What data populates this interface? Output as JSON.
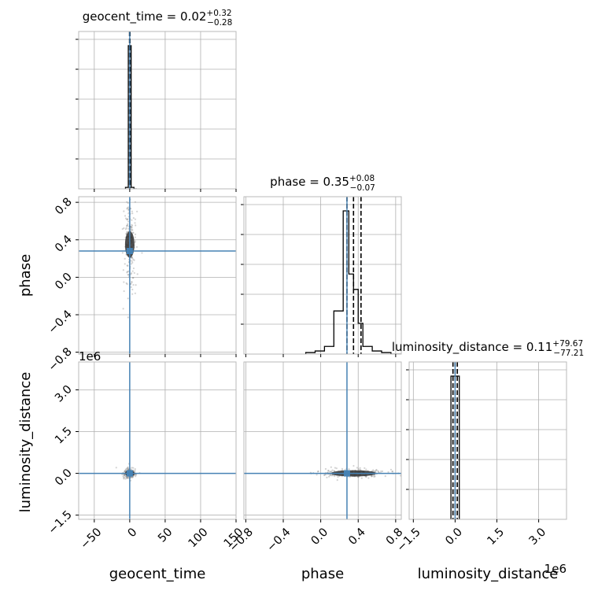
{
  "chart_data": {
    "type": "corner",
    "parameters": [
      "geocent_time",
      "phase",
      "luminosity_distance"
    ],
    "colors": {
      "truth": "#4682b4",
      "hist": "#000000",
      "grid": "#b0b0b0",
      "samples": "#808080"
    },
    "offset_labels": {
      "luminosity_distance_y": "1e6",
      "luminosity_distance_x": "1e6"
    },
    "ranges": {
      "geocent_time": [
        -72,
        150
      ],
      "phase": [
        -0.82,
        0.86
      ],
      "luminosity_distance": [
        -1650000,
        4000000
      ]
    },
    "ticks": {
      "geocent_time": {
        "values": [
          -50,
          0,
          50,
          100,
          150
        ],
        "labels": [
          "−50",
          "0",
          "50",
          "100",
          "150"
        ]
      },
      "phase": {
        "values": [
          -0.8,
          -0.4,
          0.0,
          0.4,
          0.8
        ],
        "labels": [
          "−0.8",
          "−0.4",
          "0.0",
          "0.4",
          "0.8"
        ]
      },
      "luminosity_distance": {
        "values": [
          -1500000,
          0,
          1500000,
          3000000
        ],
        "labels": [
          "−1.5",
          "0.0",
          "1.5",
          "3.0"
        ]
      }
    },
    "truths": {
      "geocent_time": 0,
      "phase": 0.28,
      "luminosity_distance": 0
    },
    "diagonal": [
      {
        "param": "geocent_time",
        "title": "geocent_time = 0.02",
        "sup": "+0.32",
        "sub": "−0.28",
        "bins": [
          -6,
          -2,
          2,
          6,
          10
        ],
        "counts": [
          1,
          96,
          1,
          0
        ],
        "quantiles": [
          -0.26,
          0.02,
          0.34
        ]
      },
      {
        "param": "phase",
        "title": "phase = 0.35",
        "sup": "+0.08",
        "sub": "−0.07",
        "bins": [
          -0.16,
          -0.06,
          0.04,
          0.14,
          0.24,
          0.3,
          0.35,
          0.4,
          0.45,
          0.55,
          0.65,
          0.75,
          0.86
        ],
        "counts": [
          1,
          2,
          5,
          28,
          93,
          52,
          42,
          20,
          5,
          2,
          1,
          0
        ],
        "quantiles": [
          0.28,
          0.35,
          0.43
        ]
      },
      {
        "param": "luminosity_distance",
        "title": "luminosity_distance = 0.11",
        "sup": "+79.67",
        "sub": "−77.21",
        "bins": [
          -150000,
          150000
        ],
        "counts": [
          100
        ],
        "quantiles": [
          -77000,
          0,
          80000
        ]
      }
    ],
    "axis_labels": {
      "geocent_time": "geocent_time",
      "phase": "phase",
      "luminosity_distance": "luminosity_distance"
    },
    "grid": true
  }
}
